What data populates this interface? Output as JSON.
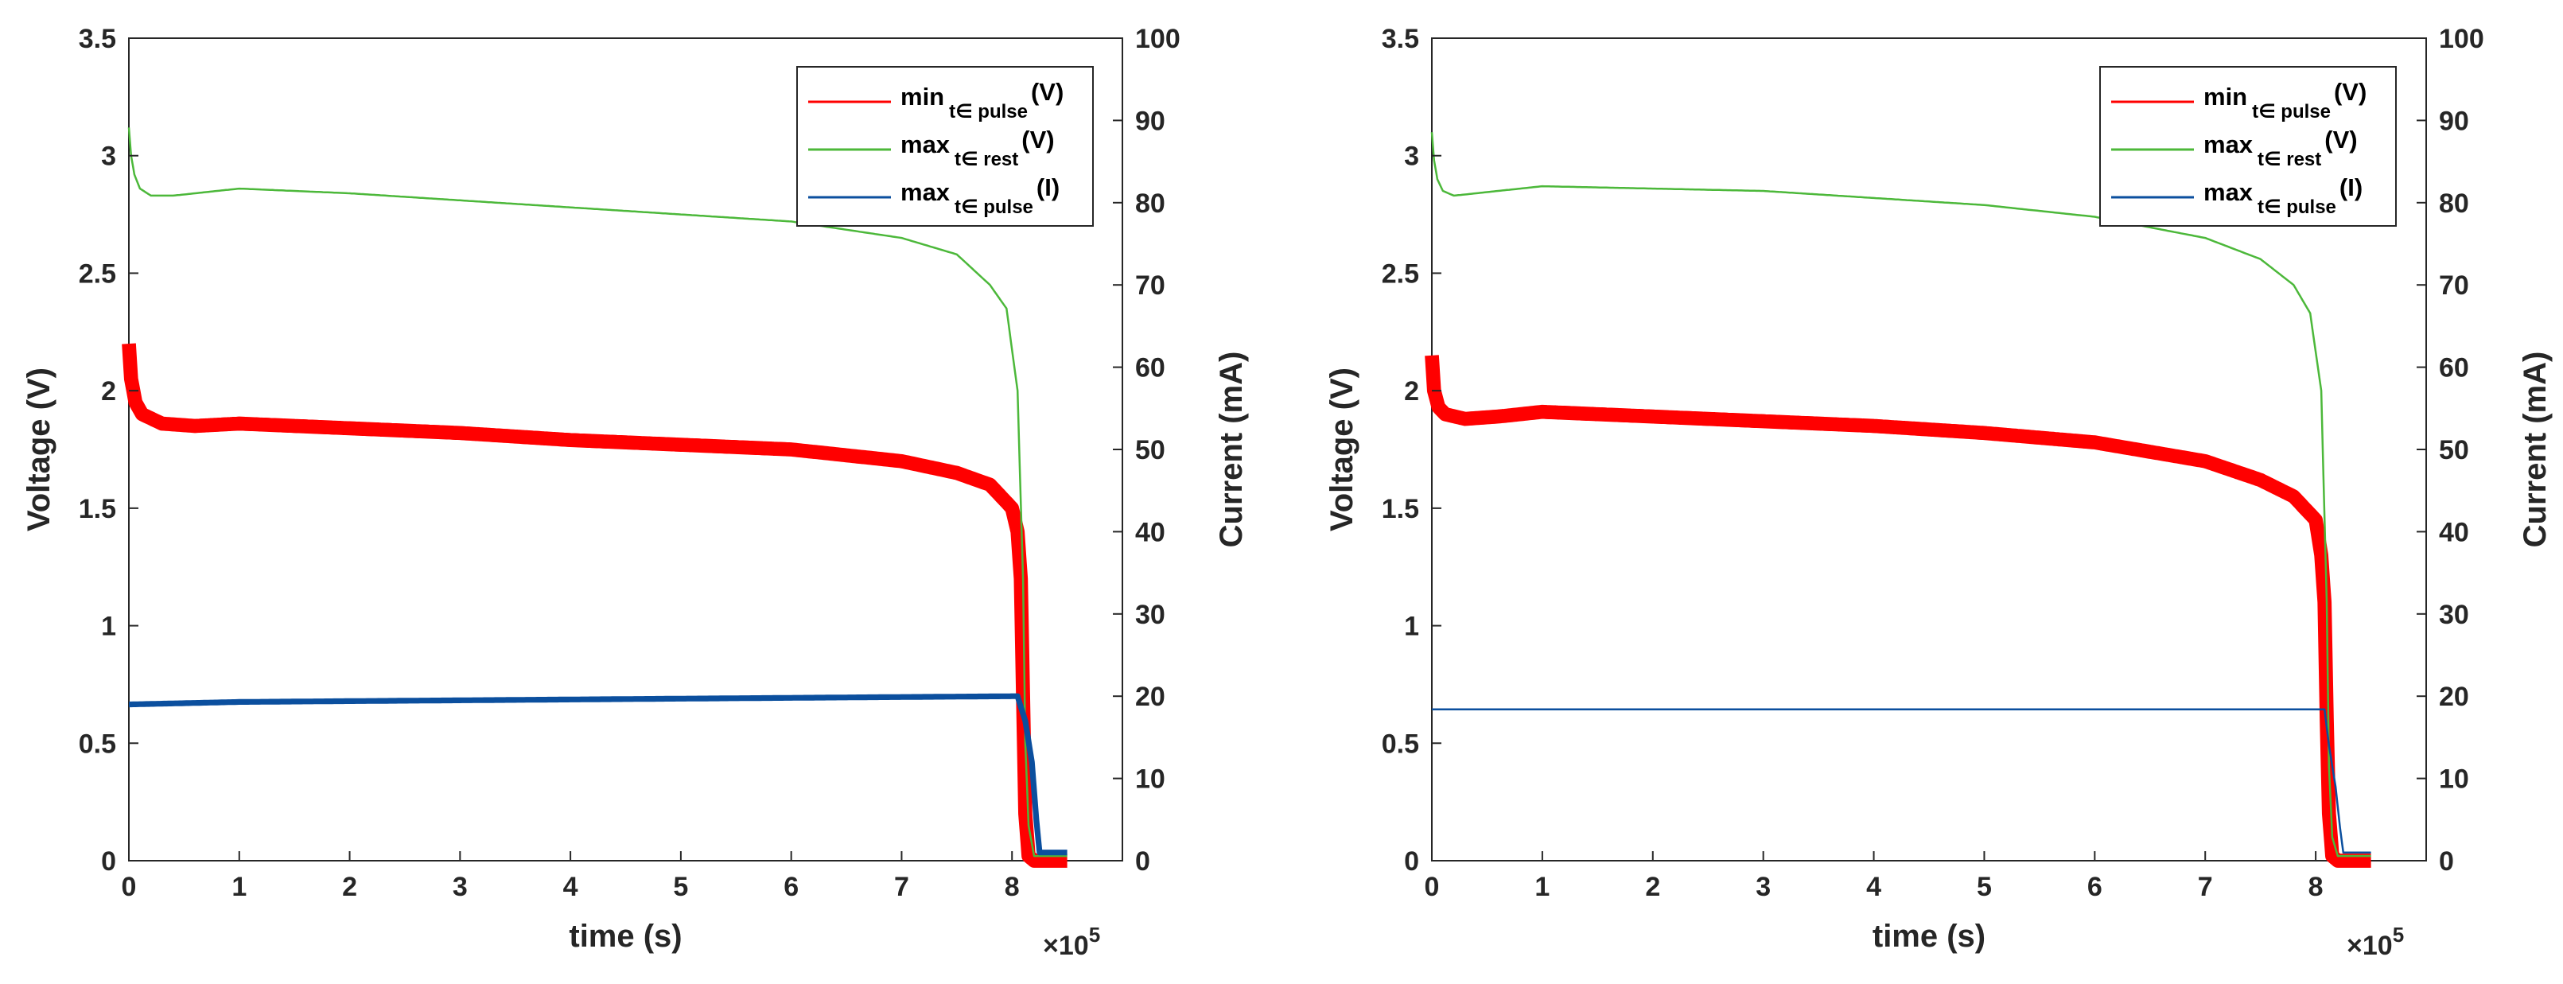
{
  "chart_data": [
    {
      "type": "line",
      "title": "",
      "xlabel": "time (s)",
      "ylabel": "Voltage (V)",
      "y2label": "Current (mA)",
      "x_multiplier": "×10",
      "x_exponent": "5",
      "xlim": [
        0,
        9
      ],
      "ylim": [
        0,
        3.5
      ],
      "y2lim": [
        0,
        100
      ],
      "x_ticks": [
        "0",
        "1",
        "2",
        "3",
        "4",
        "5",
        "6",
        "7",
        "8"
      ],
      "y_ticks": [
        "0",
        "0.5",
        "1",
        "1.5",
        "2",
        "2.5",
        "3",
        "3.5"
      ],
      "y2_ticks": [
        "0",
        "10",
        "20",
        "30",
        "40",
        "50",
        "60",
        "70",
        "80",
        "90",
        "100"
      ],
      "legend_position": "top-right",
      "series": [
        {
          "name": "min",
          "sub": "t∈ pulse",
          "unit": "(V)",
          "color": "#ff0000",
          "axis": "left",
          "band": 0.06,
          "x": [
            0,
            0.02,
            0.06,
            0.12,
            0.3,
            0.6,
            1.0,
            2.0,
            3.0,
            4.0,
            5.0,
            6.0,
            7.0,
            7.5,
            7.8,
            8.0,
            8.05,
            8.08,
            8.1,
            8.12,
            8.15,
            8.2,
            8.5
          ],
          "y": [
            2.2,
            2.05,
            1.95,
            1.9,
            1.86,
            1.85,
            1.86,
            1.84,
            1.82,
            1.79,
            1.77,
            1.75,
            1.7,
            1.65,
            1.6,
            1.5,
            1.4,
            1.2,
            0.7,
            0.2,
            0.02,
            0,
            0
          ]
        },
        {
          "name": "max",
          "sub": "t∈ rest",
          "unit": "(V)",
          "color": "#4cb83a",
          "axis": "left",
          "band": 0,
          "x": [
            0,
            0.02,
            0.05,
            0.1,
            0.2,
            0.4,
            1.0,
            2.0,
            3.0,
            4.0,
            5.0,
            6.0,
            7.0,
            7.5,
            7.8,
            7.95,
            8.05,
            8.1,
            8.12,
            8.15,
            8.2,
            8.5
          ],
          "y": [
            3.12,
            3.0,
            2.92,
            2.86,
            2.83,
            2.83,
            2.86,
            2.84,
            2.81,
            2.78,
            2.75,
            2.72,
            2.65,
            2.58,
            2.45,
            2.35,
            2.0,
            1.2,
            0.5,
            0.15,
            0.02,
            0.02
          ]
        },
        {
          "name": "max",
          "sub": "t∈ pulse",
          "unit": "(I)",
          "color": "#0b4f9e",
          "axis": "right",
          "band": 0.7,
          "x": [
            0,
            1.0,
            2.0,
            3.0,
            4.0,
            5.0,
            6.0,
            7.0,
            8.05,
            8.12,
            8.18,
            8.22,
            8.25,
            8.3,
            8.5
          ],
          "y": [
            19,
            19.3,
            19.4,
            19.5,
            19.6,
            19.7,
            19.8,
            19.9,
            20,
            17,
            12,
            5,
            1,
            1,
            1
          ]
        }
      ]
    },
    {
      "type": "line",
      "title": "",
      "xlabel": "time (s)",
      "ylabel": "Voltage (V)",
      "y2label": "Current (mA)",
      "x_multiplier": "×10",
      "x_exponent": "5",
      "xlim": [
        0,
        9
      ],
      "ylim": [
        0,
        3.5
      ],
      "y2lim": [
        0,
        100
      ],
      "x_ticks": [
        "0",
        "1",
        "2",
        "3",
        "4",
        "5",
        "6",
        "7",
        "8"
      ],
      "y_ticks": [
        "0",
        "0.5",
        "1",
        "1.5",
        "2",
        "2.5",
        "3",
        "3.5"
      ],
      "y2_ticks": [
        "0",
        "10",
        "20",
        "30",
        "40",
        "50",
        "60",
        "70",
        "80",
        "90",
        "100"
      ],
      "legend_position": "top-right",
      "series": [
        {
          "name": "min",
          "sub": "t∈ pulse",
          "unit": "(V)",
          "color": "#ff0000",
          "axis": "left",
          "band": 0.06,
          "x": [
            0,
            0.02,
            0.06,
            0.12,
            0.3,
            0.6,
            1.0,
            2.0,
            3.0,
            4.0,
            5.0,
            6.0,
            7.0,
            7.5,
            7.8,
            8.0,
            8.05,
            8.08,
            8.1,
            8.12,
            8.15,
            8.2,
            8.5
          ],
          "y": [
            2.15,
            2.0,
            1.93,
            1.9,
            1.88,
            1.89,
            1.91,
            1.89,
            1.87,
            1.85,
            1.82,
            1.78,
            1.7,
            1.62,
            1.55,
            1.45,
            1.3,
            1.1,
            0.6,
            0.2,
            0.02,
            0,
            0
          ]
        },
        {
          "name": "max",
          "sub": "t∈ rest",
          "unit": "(V)",
          "color": "#4cb83a",
          "axis": "left",
          "band": 0,
          "x": [
            0,
            0.02,
            0.05,
            0.1,
            0.2,
            0.4,
            1.0,
            2.0,
            3.0,
            4.0,
            5.0,
            6.0,
            7.0,
            7.5,
            7.8,
            7.95,
            8.05,
            8.1,
            8.12,
            8.15,
            8.2,
            8.5
          ],
          "y": [
            3.1,
            2.98,
            2.9,
            2.85,
            2.83,
            2.84,
            2.87,
            2.86,
            2.85,
            2.82,
            2.79,
            2.74,
            2.65,
            2.56,
            2.45,
            2.33,
            2.0,
            1.1,
            0.4,
            0.1,
            0.02,
            0.02
          ]
        },
        {
          "name": "max",
          "sub": "t∈ pulse",
          "unit": "(I)",
          "color": "#0b4f9e",
          "axis": "right",
          "band": 0,
          "x": [
            0,
            1.0,
            2.0,
            3.0,
            4.0,
            5.0,
            6.0,
            7.0,
            8.08,
            8.12,
            8.18,
            8.22,
            8.25,
            8.3,
            8.5
          ],
          "y": [
            18.4,
            18.4,
            18.4,
            18.4,
            18.4,
            18.4,
            18.4,
            18.4,
            18.4,
            14,
            9,
            4,
            1,
            1,
            1
          ]
        }
      ]
    }
  ]
}
